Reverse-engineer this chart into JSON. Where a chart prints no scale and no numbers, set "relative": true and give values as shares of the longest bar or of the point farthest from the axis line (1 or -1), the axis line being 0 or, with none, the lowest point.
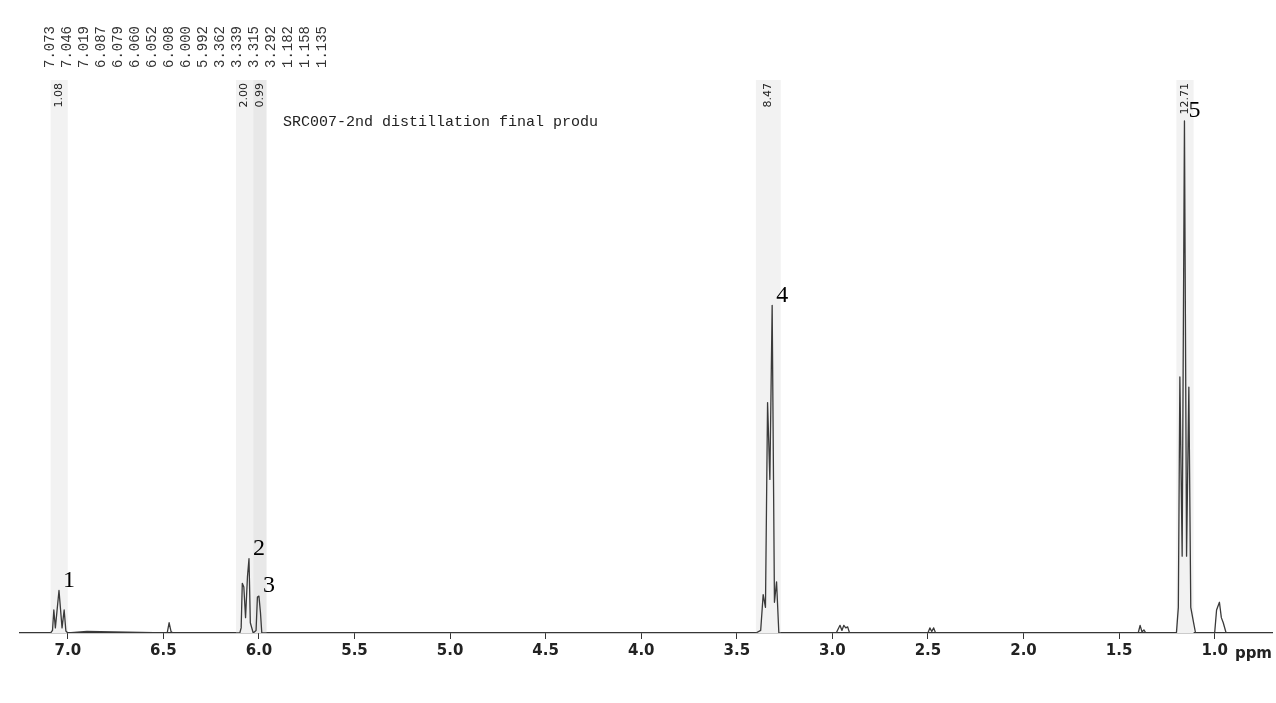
{
  "chart_data": {
    "type": "line",
    "relative": true,
    "title": "SRC007-2nd distillation final produ",
    "xlabel": "ppm",
    "marker": "none",
    "line_style": "solid",
    "grid": false,
    "legend": false,
    "xlim": [
      7.25,
      0.7
    ],
    "xticks": [
      {
        "value": 7.0,
        "label": "7.0"
      },
      {
        "value": 6.5,
        "label": "6.5"
      },
      {
        "value": 6.0,
        "label": "6.0"
      },
      {
        "value": 5.5,
        "label": "5.5"
      },
      {
        "value": 5.0,
        "label": "5.0"
      },
      {
        "value": 4.5,
        "label": "4.5"
      },
      {
        "value": 4.0,
        "label": "4.0"
      },
      {
        "value": 3.5,
        "label": "3.5"
      },
      {
        "value": 3.0,
        "label": "3.0"
      },
      {
        "value": 2.5,
        "label": "2.5"
      },
      {
        "value": 2.0,
        "label": "2.0"
      },
      {
        "value": 1.5,
        "label": "1.5"
      },
      {
        "value": 1.0,
        "label": "1.0"
      }
    ],
    "series": [
      {
        "color": "#3a3a3a",
        "x": [
          7.25,
          7.09,
          7.08,
          7.073,
          7.065,
          7.046,
          7.03,
          7.019,
          7.01,
          7.0,
          6.9,
          6.48,
          6.47,
          6.46,
          6.45,
          6.1,
          6.093,
          6.087,
          6.079,
          6.07,
          6.06,
          6.052,
          6.045,
          6.03,
          6.015,
          6.008,
          6.0,
          5.992,
          5.985,
          3.4,
          3.375,
          3.362,
          3.35,
          3.339,
          3.327,
          3.315,
          3.303,
          3.292,
          3.28,
          2.98,
          2.96,
          2.95,
          2.94,
          2.93,
          2.92,
          2.91,
          2.5,
          2.49,
          2.48,
          2.47,
          2.46,
          1.4,
          1.39,
          1.38,
          1.37,
          1.36,
          1.2,
          1.19,
          1.182,
          1.17,
          1.158,
          1.147,
          1.135,
          1.125,
          1.11,
          1.1,
          1.0,
          0.99,
          0.975,
          0.965,
          0.955,
          0.94,
          0.7
        ],
        "values": [
          0,
          0,
          0.005,
          0.045,
          0.01,
          0.083,
          0.01,
          0.045,
          0.004,
          0,
          0.003,
          0,
          0.02,
          0.003,
          0,
          0,
          0.01,
          0.097,
          0.09,
          0.03,
          0.11,
          0.145,
          0.02,
          0,
          0.005,
          0.07,
          0.072,
          0.04,
          0,
          0,
          0.005,
          0.075,
          0.05,
          0.45,
          0.3,
          0.64,
          0.06,
          0.1,
          0,
          0,
          0.015,
          0.005,
          0.015,
          0.01,
          0.012,
          0,
          0,
          0.01,
          0.003,
          0.01,
          0,
          0,
          0.015,
          0.002,
          0.006,
          0,
          0,
          0.05,
          0.5,
          0.15,
          1,
          0.15,
          0.48,
          0.05,
          0.02,
          0,
          0,
          0.045,
          0.06,
          0.03,
          0.02,
          0,
          0
        ]
      }
    ],
    "annotations": [
      {
        "text": "1",
        "x": 7.046,
        "y": 0.083
      },
      {
        "text": "2",
        "x": 6.052,
        "y": 0.145
      },
      {
        "text": "3",
        "x": 6.0,
        "y": 0.072
      },
      {
        "text": "4",
        "x": 3.315,
        "y": 0.64
      },
      {
        "text": "5",
        "x": 1.158,
        "y": 1
      },
      "7.073",
      "7.046",
      "7.019",
      "6.087",
      "6.079",
      "6.060",
      "6.052",
      "6.008",
      "6.000",
      "5.992",
      "3.362",
      "3.339",
      "3.315",
      "3.292",
      "1.182",
      "1.158",
      "1.135"
    ],
    "bands": [
      {
        "axis": "x",
        "from": 7.09,
        "to": 7.0,
        "label": "1.08",
        "color": "#f2f2f2"
      },
      {
        "axis": "x",
        "from": 6.12,
        "to": 6.03,
        "label": "2.00",
        "color": "#f2f2f2"
      },
      {
        "axis": "x",
        "from": 6.03,
        "to": 5.96,
        "label": "0.99",
        "color": "#e8e8e8"
      },
      {
        "axis": "x",
        "from": 3.4,
        "to": 3.27,
        "label": "8.47",
        "color": "#f2f2f2"
      },
      {
        "axis": "x",
        "from": 1.2,
        "to": 1.11,
        "label": "12.71",
        "color": "#f2f2f2"
      }
    ]
  }
}
